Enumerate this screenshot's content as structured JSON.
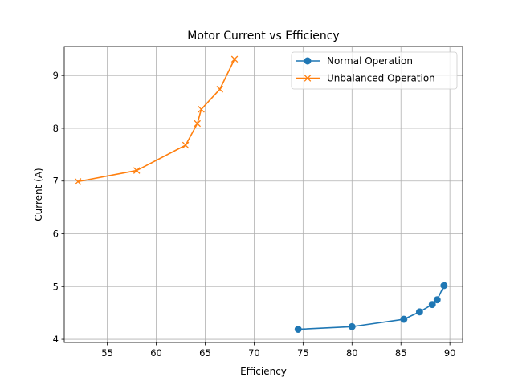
{
  "chart_data": {
    "type": "line",
    "title": "Motor Current vs Efficiency",
    "xlabel": "Efficiency",
    "ylabel": "Current (A)",
    "xlim": [
      50.6,
      91.3
    ],
    "ylim": [
      3.94,
      9.55
    ],
    "xticks": [
      55,
      60,
      65,
      70,
      75,
      80,
      85,
      90
    ],
    "yticks": [
      4,
      5,
      6,
      7,
      8,
      9
    ],
    "grid": true,
    "legend_position": "top-right",
    "series": [
      {
        "name": "Normal Operation",
        "color": "#1f77b4",
        "marker": "circle",
        "points": [
          {
            "x": 74.5,
            "y": 4.19
          },
          {
            "x": 80.0,
            "y": 4.24
          },
          {
            "x": 85.3,
            "y": 4.38
          },
          {
            "x": 86.9,
            "y": 4.52
          },
          {
            "x": 88.2,
            "y": 4.66
          },
          {
            "x": 88.7,
            "y": 4.75
          },
          {
            "x": 89.4,
            "y": 5.02
          }
        ]
      },
      {
        "name": "Unbalanced Operation",
        "color": "#ff7f0e",
        "marker": "x",
        "points": [
          {
            "x": 52.0,
            "y": 6.99
          },
          {
            "x": 58.0,
            "y": 7.2
          },
          {
            "x": 63.0,
            "y": 7.68
          },
          {
            "x": 64.2,
            "y": 8.09
          },
          {
            "x": 64.6,
            "y": 8.36
          },
          {
            "x": 66.5,
            "y": 8.74
          },
          {
            "x": 68.0,
            "y": 9.31
          }
        ]
      }
    ]
  }
}
